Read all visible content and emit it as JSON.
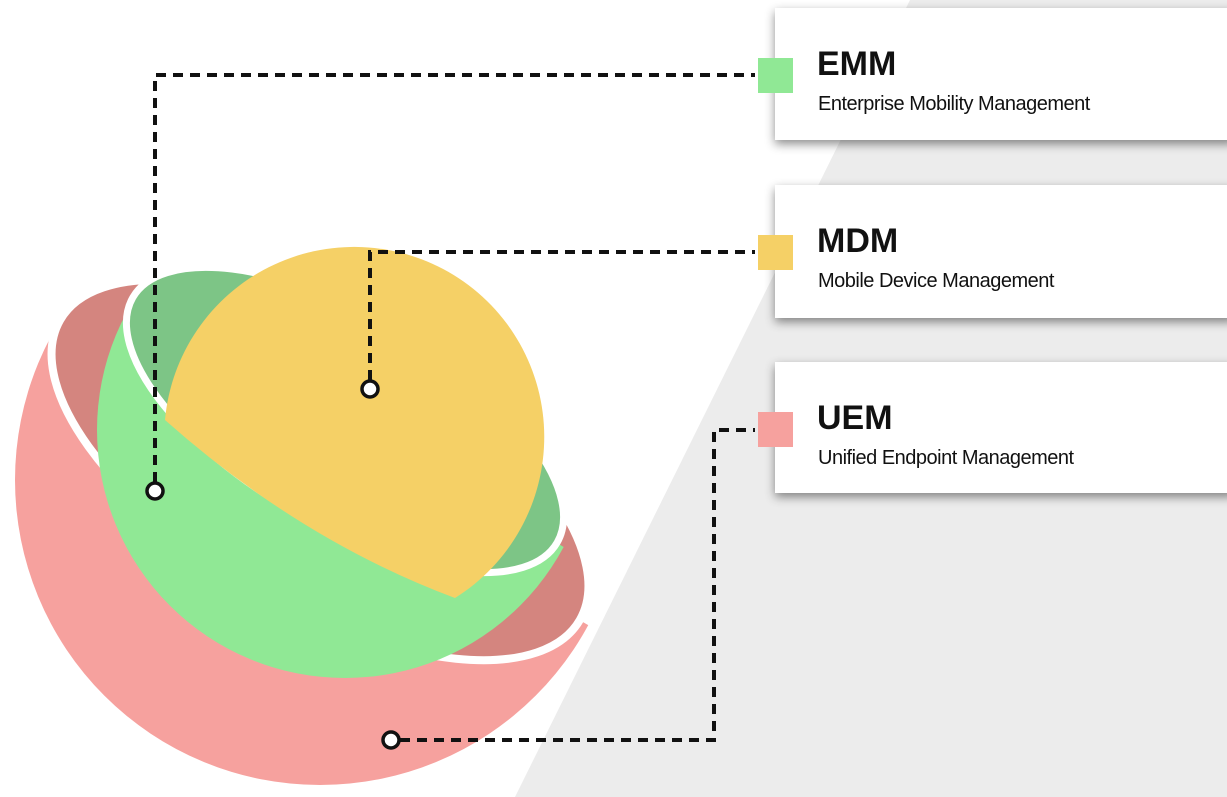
{
  "items": [
    {
      "title": "EMM",
      "subtitle": "Enterprise Mobility Management"
    },
    {
      "title": "MDM",
      "subtitle": "Mobile Device Management"
    },
    {
      "title": "UEM",
      "subtitle": "Unified Endpoint Management"
    }
  ]
}
